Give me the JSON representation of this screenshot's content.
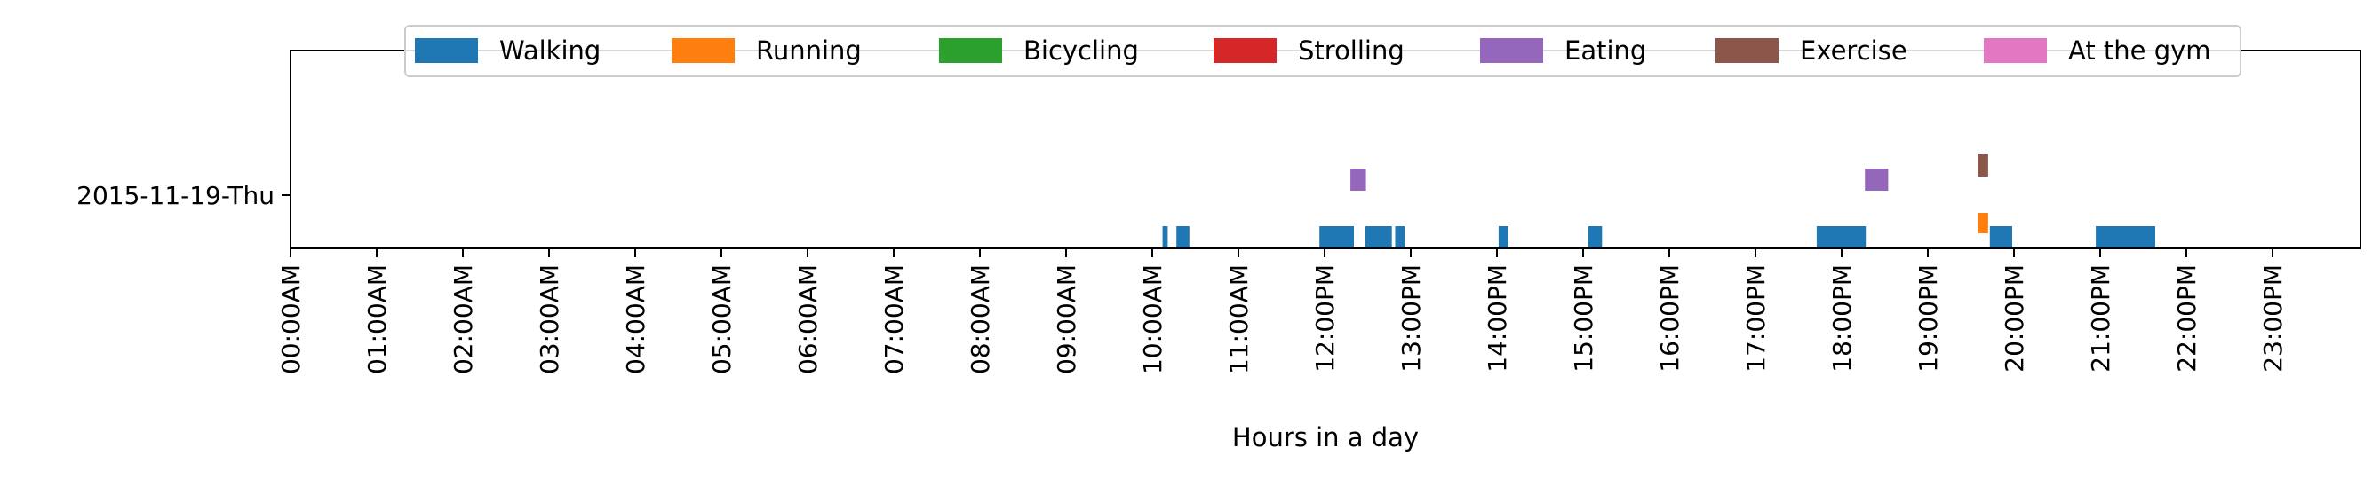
{
  "chart_data": {
    "type": "timeline",
    "title": "",
    "xlabel": "Hours in a day",
    "ylabel": "",
    "xlim": [
      0,
      24
    ],
    "x_unit": "hour of day",
    "grid": false,
    "legend_position": "top-center",
    "categories": [
      "2015-11-19-Thu"
    ],
    "x_tick_labels": [
      "00:00AM",
      "01:00AM",
      "02:00AM",
      "03:00AM",
      "04:00AM",
      "05:00AM",
      "06:00AM",
      "07:00AM",
      "08:00AM",
      "09:00AM",
      "10:00AM",
      "11:00AM",
      "12:00PM",
      "13:00PM",
      "14:00PM",
      "15:00PM",
      "16:00PM",
      "17:00PM",
      "18:00PM",
      "19:00PM",
      "20:00PM",
      "21:00PM",
      "22:00PM",
      "23:00PM"
    ],
    "series": [
      {
        "name": "Walking",
        "color": "#1f77b4",
        "intervals": [
          [
            10.12,
            10.18
          ],
          [
            10.28,
            10.43
          ],
          [
            11.94,
            12.34
          ],
          [
            12.47,
            12.78
          ],
          [
            12.82,
            12.93
          ],
          [
            14.02,
            14.13
          ],
          [
            15.06,
            15.22
          ],
          [
            17.71,
            18.28
          ],
          [
            19.72,
            19.98
          ],
          [
            20.95,
            21.64
          ]
        ]
      },
      {
        "name": "Running",
        "color": "#ff7f0e",
        "intervals": [
          [
            19.58,
            19.7
          ]
        ]
      },
      {
        "name": "Bicycling",
        "color": "#2ca02c",
        "intervals": []
      },
      {
        "name": "Strolling",
        "color": "#d62728",
        "intervals": []
      },
      {
        "name": "Eating",
        "color": "#9467bd",
        "intervals": [
          [
            12.3,
            12.48
          ],
          [
            18.27,
            18.54
          ]
        ]
      },
      {
        "name": "Exercise",
        "color": "#8c564b",
        "intervals": [
          [
            19.58,
            19.7
          ]
        ]
      },
      {
        "name": "At the gym",
        "color": "#e377c2",
        "intervals": []
      }
    ]
  }
}
